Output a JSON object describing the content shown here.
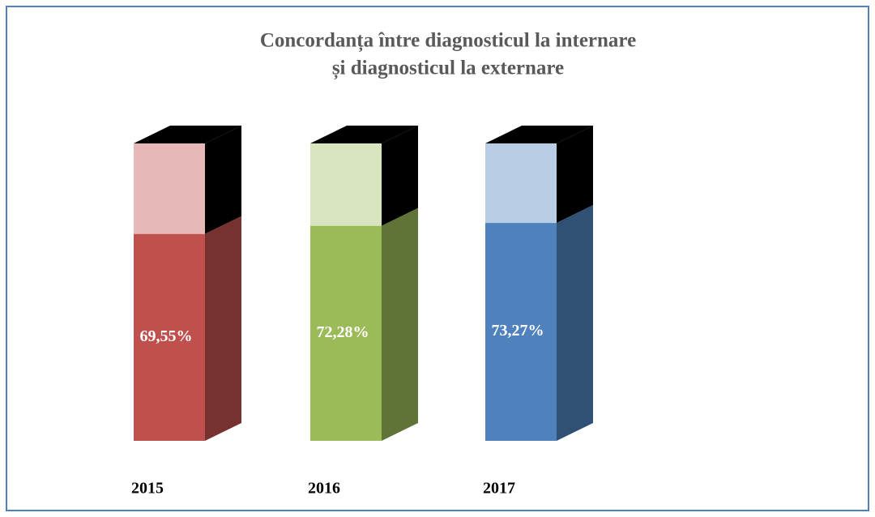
{
  "chart_data": {
    "type": "bar3d",
    "title": [
      "Concordanța între diagnosticul la internare",
      "și diagnosticul la externare"
    ],
    "categories": [
      "2015",
      "2016",
      "2017"
    ],
    "values": [
      69.55,
      72.28,
      73.27
    ],
    "value_labels": [
      "69,55%",
      "72,28%",
      "73,27%"
    ],
    "colors": [
      "#c0504d",
      "#9bbb59",
      "#4f81bd"
    ],
    "ylim": [
      0,
      100
    ]
  }
}
